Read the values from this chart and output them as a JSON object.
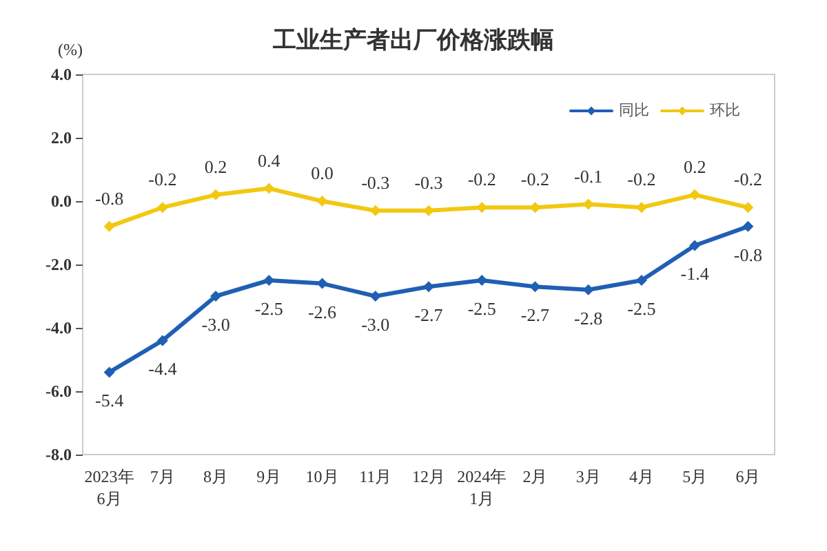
{
  "chart_data": {
    "type": "line",
    "title": "工业生产者出厂价格涨跌幅",
    "ylabel": "(%)",
    "categories": [
      "2023年\n6月",
      "7月",
      "8月",
      "9月",
      "10月",
      "11月",
      "12月",
      "2024年\n1月",
      "2月",
      "3月",
      "4月",
      "5月",
      "6月"
    ],
    "series": [
      {
        "name": "同比",
        "color": "#1f5fb4",
        "values": [
          -5.4,
          -4.4,
          -3.0,
          -2.5,
          -2.6,
          -3.0,
          -2.7,
          -2.5,
          -2.7,
          -2.8,
          -2.5,
          -1.4,
          -0.8
        ],
        "value_labels": [
          "-5.4",
          "-4.4",
          "-3.0",
          "-2.5",
          "-2.6",
          "-3.0",
          "-2.7",
          "-2.5",
          "-2.7",
          "-2.8",
          "-2.5",
          "-1.4",
          "-0.8"
        ]
      },
      {
        "name": "环比",
        "color": "#f2c811",
        "values": [
          -0.8,
          -0.2,
          0.2,
          0.4,
          0.0,
          -0.3,
          -0.3,
          -0.2,
          -0.2,
          -0.1,
          -0.2,
          0.2,
          -0.2
        ],
        "value_labels": [
          "-0.8",
          "-0.2",
          "0.2",
          "0.4",
          "0.0",
          "-0.3",
          "-0.3",
          "-0.2",
          "-0.2",
          "-0.1",
          "-0.2",
          "0.2",
          "-0.2"
        ]
      }
    ],
    "ylim": [
      -8,
      4
    ],
    "yticks": [
      {
        "value": -8,
        "label": "-8.0"
      },
      {
        "value": -6,
        "label": "-6.0"
      },
      {
        "value": -4,
        "label": "-4.0"
      },
      {
        "value": -2,
        "label": "-2.0"
      },
      {
        "value": 0,
        "label": "0.0"
      },
      {
        "value": 2,
        "label": "2.0"
      },
      {
        "value": 4,
        "label": "4.0"
      }
    ],
    "grid": false,
    "legend": "top right",
    "marker": "diamond",
    "line_style": "solid"
  }
}
